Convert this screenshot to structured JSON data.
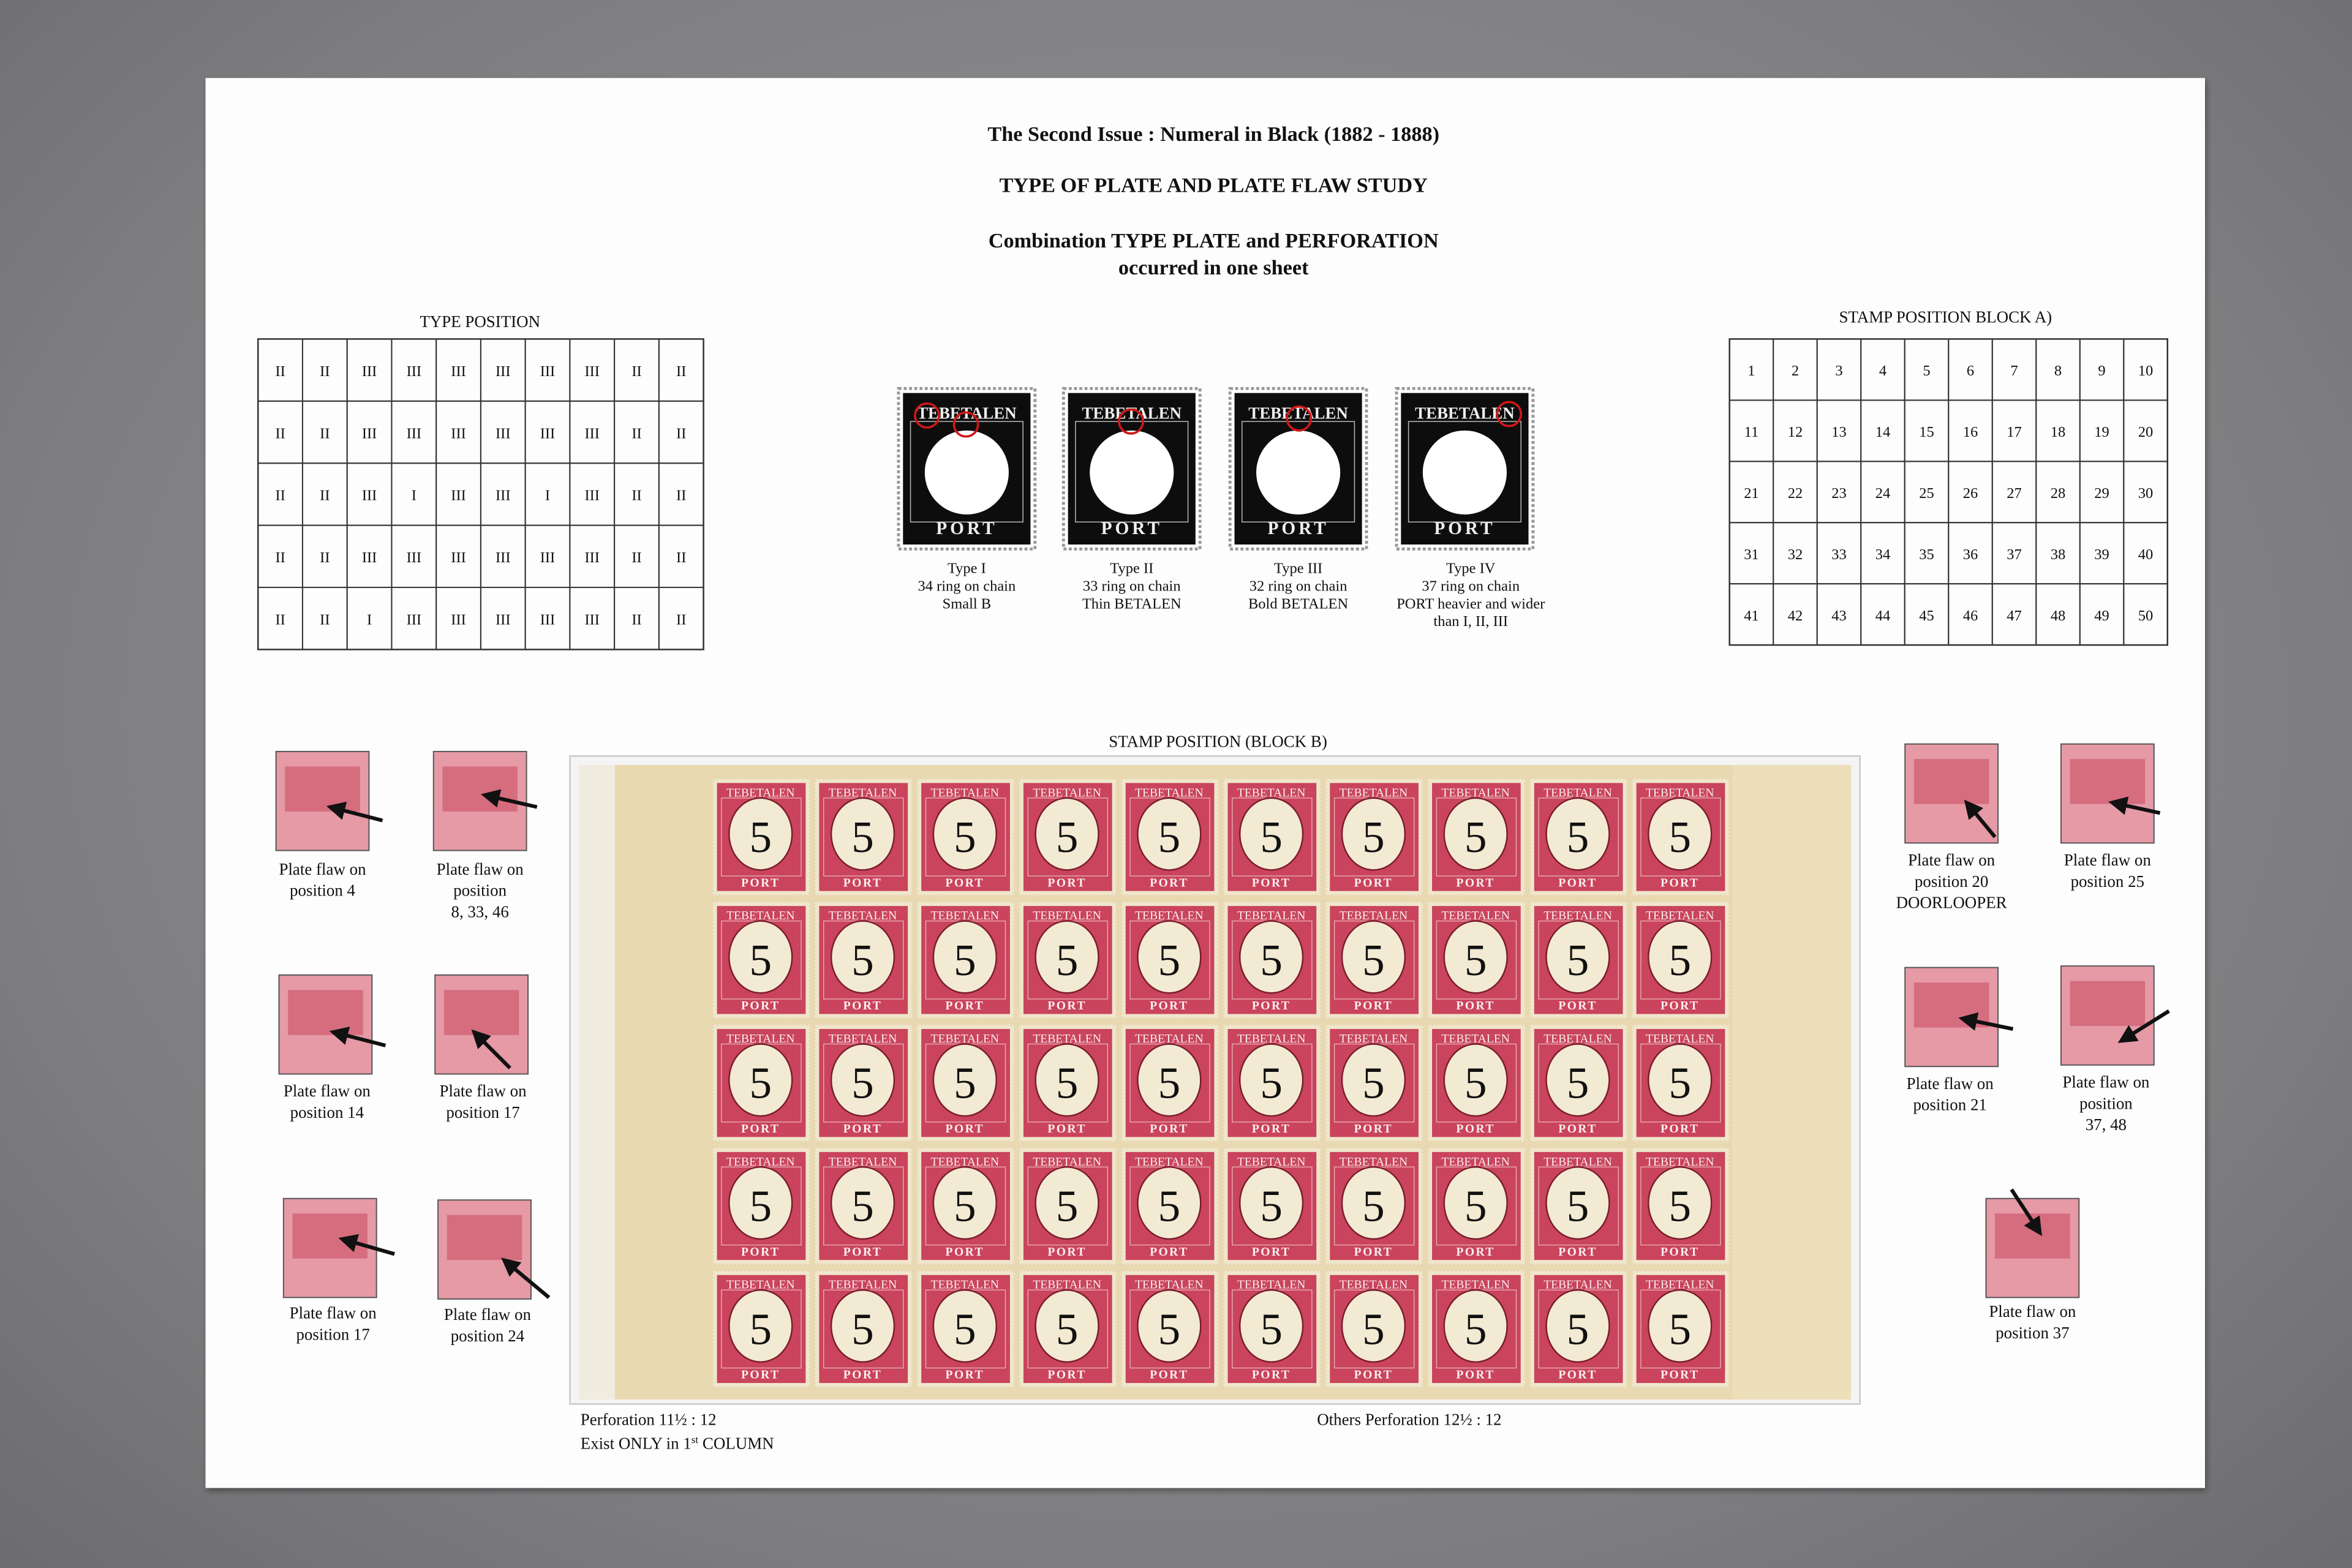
{
  "header": {
    "title": "The Second Issue : Numeral in Black (1882 - 1888)",
    "subtitle": "TYPE OF PLATE AND PLATE FLAW STUDY",
    "heading": "Combination TYPE PLATE and PERFORATION",
    "heading_2": "occurred in one sheet"
  },
  "type_position": {
    "title": "TYPE  POSITION",
    "rows": [
      [
        "II",
        "II",
        "III",
        "III",
        "III",
        "III",
        "III",
        "III",
        "II",
        "II"
      ],
      [
        "II",
        "II",
        "III",
        "III",
        "III",
        "III",
        "III",
        "III",
        "II",
        "II"
      ],
      [
        "II",
        "II",
        "III",
        "I",
        "III",
        "III",
        "I",
        "III",
        "II",
        "II"
      ],
      [
        "II",
        "II",
        "III",
        "III",
        "III",
        "III",
        "III",
        "III",
        "II",
        "II"
      ],
      [
        "II",
        "II",
        "I",
        "III",
        "III",
        "III",
        "III",
        "III",
        "II",
        "II"
      ]
    ]
  },
  "stamp_position_a": {
    "title": "STAMP  POSITION BLOCK A)",
    "rows": [
      [
        1,
        2,
        3,
        4,
        5,
        6,
        7,
        8,
        9,
        10
      ],
      [
        11,
        12,
        13,
        14,
        15,
        16,
        17,
        18,
        19,
        20
      ],
      [
        21,
        22,
        23,
        24,
        25,
        26,
        27,
        28,
        29,
        30
      ],
      [
        31,
        32,
        33,
        34,
        35,
        36,
        37,
        38,
        39,
        40
      ],
      [
        41,
        42,
        43,
        44,
        45,
        46,
        47,
        48,
        49,
        50
      ]
    ]
  },
  "type_stamp": {
    "top": "TEBETALEN",
    "bottom": "PORT"
  },
  "types": [
    {
      "caption": [
        "Type I",
        "34 ring on chain",
        "Small B"
      ]
    },
    {
      "caption": [
        "Type II",
        "33 ring on chain",
        "Thin BETALEN"
      ]
    },
    {
      "caption": [
        "Type III",
        "32 ring on chain",
        "Bold BETALEN"
      ]
    },
    {
      "caption": [
        "Type IV",
        "37 ring on chain",
        "PORT heavier and wider",
        "than I, II, III"
      ]
    }
  ],
  "block_b": {
    "title": "STAMP POSITION (BLOCK B)",
    "stamp": {
      "top": "TEBETALEN",
      "value": "5",
      "bottom": "PORT"
    },
    "perforation": "Perforation 11½ : 12",
    "exist": {
      "before": "Exist ONLY in 1",
      "sup": "st",
      "after": " COLUMN"
    },
    "others": "Others Perforation 12½ : 12"
  },
  "flaws_left": [
    {
      "caption": [
        "Plate flaw on",
        "position 4"
      ]
    },
    {
      "caption": [
        "Plate flaw on",
        "position",
        "8, 33, 46"
      ]
    },
    {
      "caption": [
        "Plate flaw on",
        "position 14"
      ]
    },
    {
      "caption": [
        "Plate flaw on",
        "position 17"
      ]
    },
    {
      "caption": [
        "Plate flaw on",
        "position 17"
      ]
    },
    {
      "caption": [
        "Plate flaw on",
        "position 24"
      ]
    }
  ],
  "flaws_right": [
    {
      "caption": [
        "Plate flaw on",
        "position 20",
        "DOORLOOPER"
      ]
    },
    {
      "caption": [
        "Plate flaw on",
        "position 25"
      ]
    },
    {
      "caption": [
        "Plate flaw on",
        "position 21"
      ]
    },
    {
      "caption": [
        "Plate flaw on",
        "position",
        "37, 48"
      ]
    },
    {
      "caption": [
        "Plate flaw on",
        "position 37"
      ]
    }
  ]
}
